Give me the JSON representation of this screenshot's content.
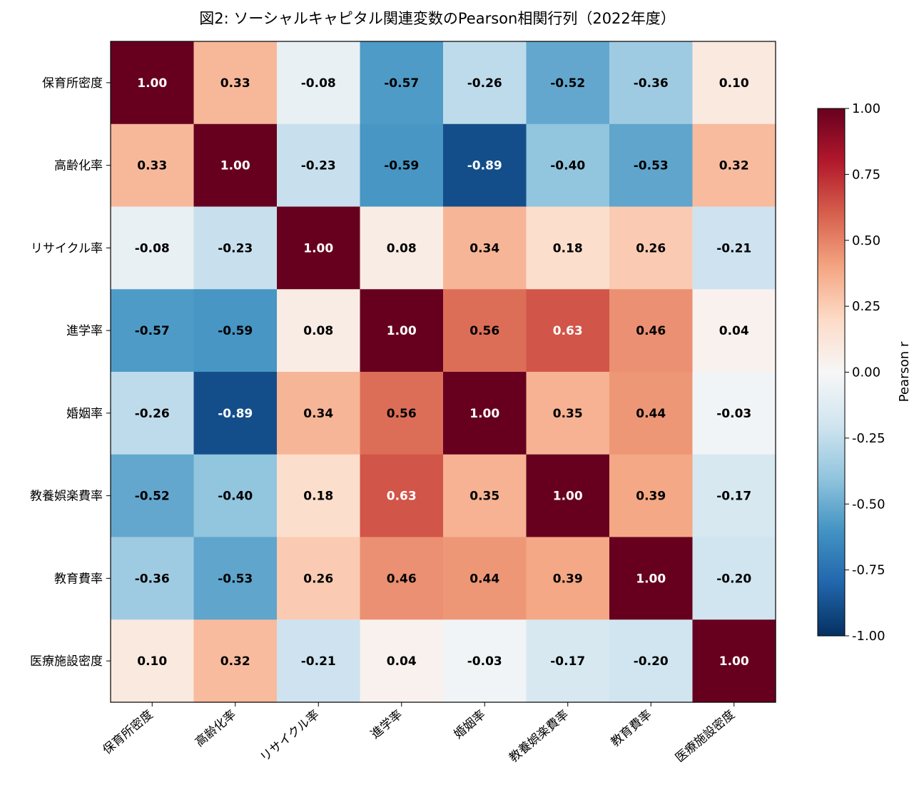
{
  "chart_data": {
    "type": "heatmap",
    "title": "図2: ソーシャルキャピタル関連変数のPearson相関行列（2022年度）",
    "rows": [
      "保育所密度",
      "高齢化率",
      "リサイクル率",
      "進学率",
      "婚姻率",
      "教養娯楽費率",
      "教育費率",
      "医療施設密度"
    ],
    "cols": [
      "保育所密度",
      "高齢化率",
      "リサイクル率",
      "進学率",
      "婚姻率",
      "教養娯楽費率",
      "教育費率",
      "医療施設密度"
    ],
    "values": [
      [
        1.0,
        0.33,
        -0.08,
        -0.57,
        -0.26,
        -0.52,
        -0.36,
        0.1
      ],
      [
        0.33,
        1.0,
        -0.23,
        -0.59,
        -0.89,
        -0.4,
        -0.53,
        0.32
      ],
      [
        -0.08,
        -0.23,
        1.0,
        0.08,
        0.34,
        0.18,
        0.26,
        -0.21
      ],
      [
        -0.57,
        -0.59,
        0.08,
        1.0,
        0.56,
        0.63,
        0.46,
        0.04
      ],
      [
        -0.26,
        -0.89,
        0.34,
        0.56,
        1.0,
        0.35,
        0.44,
        -0.03
      ],
      [
        -0.52,
        -0.4,
        0.18,
        0.63,
        0.35,
        1.0,
        0.39,
        -0.17
      ],
      [
        -0.36,
        -0.53,
        0.26,
        0.46,
        0.44,
        0.39,
        1.0,
        -0.2
      ],
      [
        0.1,
        0.32,
        -0.21,
        0.04,
        -0.03,
        -0.17,
        -0.2,
        1.0
      ]
    ],
    "value_labels": [
      [
        "1.00",
        "0.33",
        "-0.08",
        "-0.57",
        "-0.26",
        "-0.52",
        "-0.36",
        "0.10"
      ],
      [
        "0.33",
        "1.00",
        "-0.23",
        "-0.59",
        "-0.89",
        "-0.40",
        "-0.53",
        "0.32"
      ],
      [
        "-0.08",
        "-0.23",
        "1.00",
        "0.08",
        "0.34",
        "0.18",
        "0.26",
        "-0.21"
      ],
      [
        "-0.57",
        "-0.59",
        "0.08",
        "1.00",
        "0.56",
        "0.63",
        "0.46",
        "0.04"
      ],
      [
        "-0.26",
        "-0.89",
        "0.34",
        "0.56",
        "1.00",
        "0.35",
        "0.44",
        "-0.03"
      ],
      [
        "-0.52",
        "-0.40",
        "0.18",
        "0.63",
        "0.35",
        "1.00",
        "0.39",
        "-0.17"
      ],
      [
        "-0.36",
        "-0.53",
        "0.26",
        "0.46",
        "0.44",
        "0.39",
        "1.00",
        "-0.20"
      ],
      [
        "0.10",
        "0.32",
        "-0.21",
        "0.04",
        "-0.03",
        "-0.17",
        "-0.20",
        "1.00"
      ]
    ],
    "colormap": "RdBu_r",
    "vmin": -1.0,
    "vmax": 1.0,
    "colorbar": {
      "label": "Pearson r",
      "ticks": [
        1.0,
        0.75,
        0.5,
        0.25,
        0.0,
        -0.25,
        -0.5,
        -0.75,
        -1.0
      ],
      "tick_labels": [
        "1.00",
        "0.75",
        "0.50",
        "0.25",
        "0.00",
        "-0.25",
        "-0.50",
        "-0.75",
        "-1.00"
      ]
    },
    "annotation_colors": {
      "dark": "#000000",
      "light": "#ffffff"
    }
  }
}
